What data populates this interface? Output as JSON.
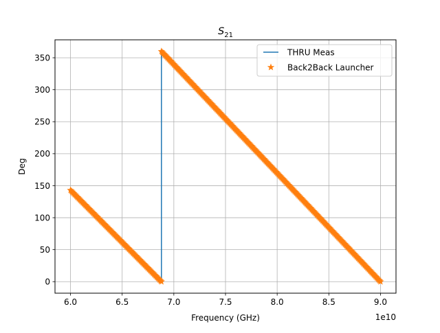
{
  "chart_data": {
    "type": "line",
    "title": "S",
    "title_subscript": "21",
    "xlabel": "Frequency (GHz)",
    "ylabel": "Deg",
    "x_offset_label": "1e10",
    "xlim": [
      5.85,
      9.15
    ],
    "ylim": [
      -18,
      378
    ],
    "x_ticks": [
      6.0,
      6.5,
      7.0,
      7.5,
      8.0,
      8.5,
      9.0
    ],
    "x_tick_labels": [
      "6.0",
      "6.5",
      "7.0",
      "7.5",
      "8.0",
      "8.5",
      "9.0"
    ],
    "y_ticks": [
      0,
      50,
      100,
      150,
      200,
      250,
      300,
      350
    ],
    "y_tick_labels": [
      "0",
      "50",
      "100",
      "150",
      "200",
      "250",
      "300",
      "350"
    ],
    "grid": true,
    "legend_position": "top-right",
    "series": [
      {
        "name": "THRU Meas",
        "style": "line",
        "color": "#1f77b4",
        "points": [
          [
            6.0,
            143
          ],
          [
            6.88,
            0
          ],
          [
            6.88,
            360
          ],
          [
            9.0,
            0
          ]
        ]
      },
      {
        "name": "Back2Back Launcher",
        "style": "star-markers",
        "color": "#ff7f0e",
        "segments": [
          {
            "x_start": 6.0,
            "y_start": 143,
            "x_end": 6.88,
            "y_end": 0
          },
          {
            "x_start": 6.88,
            "y_start": 360,
            "x_end": 9.0,
            "y_end": 0
          }
        ]
      }
    ]
  }
}
